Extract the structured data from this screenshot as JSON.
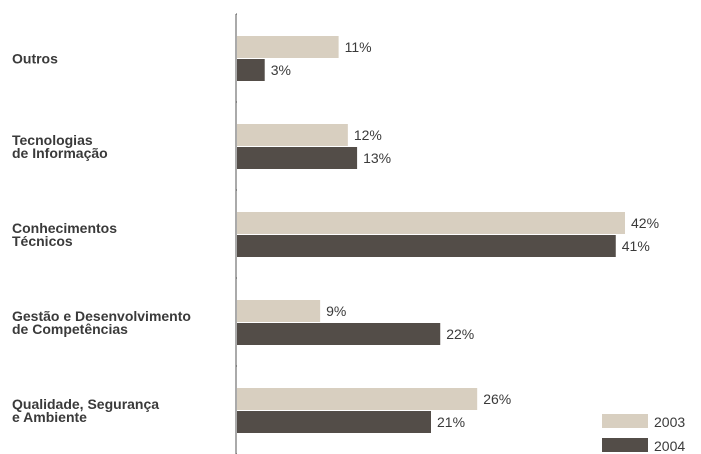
{
  "chart_data": {
    "type": "bar",
    "orientation": "horizontal",
    "categories": [
      [
        "Outros"
      ],
      [
        "Tecnologias",
        "de Informação"
      ],
      [
        "Conhecimentos",
        "Técnicos"
      ],
      [
        "Gestão e Desenvolvimento",
        "de Competências"
      ],
      [
        "Qualidade, Segurança",
        "e Ambiente"
      ]
    ],
    "series": [
      {
        "name": "2003",
        "color": "#d8cfc0",
        "values": [
          11,
          12,
          42,
          9,
          26
        ],
        "labels": [
          "11%",
          "12%",
          "42%",
          "9%",
          "26%"
        ]
      },
      {
        "name": "2004",
        "color": "#534d48",
        "values": [
          3,
          13,
          41,
          22,
          21
        ],
        "labels": [
          "3%",
          "13%",
          "41%",
          "22%",
          "21%"
        ]
      }
    ],
    "xlim": [
      0,
      44
    ],
    "grid": false,
    "legend_position": "bottom-right"
  }
}
